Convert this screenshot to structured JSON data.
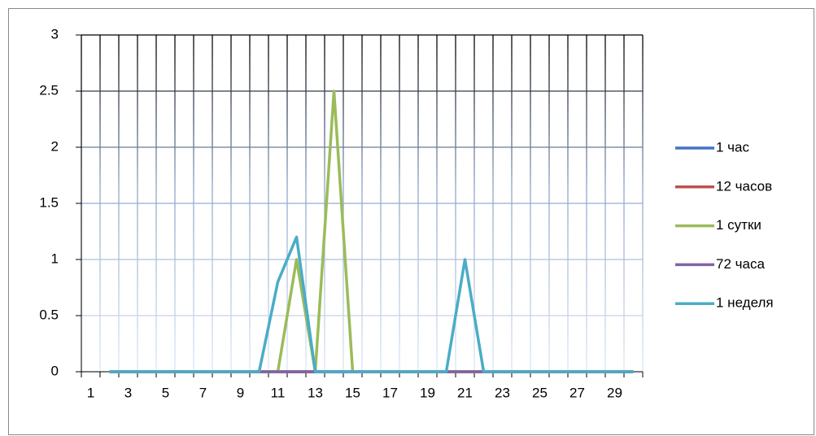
{
  "chart_data": {
    "type": "line",
    "categories": [
      1,
      null,
      3,
      null,
      5,
      null,
      7,
      null,
      9,
      null,
      11,
      null,
      13,
      null,
      15,
      null,
      17,
      null,
      19,
      null,
      21,
      null,
      23,
      null,
      25,
      null,
      27,
      null,
      29,
      null
    ],
    "series": [
      {
        "name": "1 час",
        "color": "#4472c4",
        "values": [
          null,
          0,
          0,
          0,
          0,
          0,
          0,
          0,
          0,
          0,
          0,
          0,
          0,
          0,
          0,
          0,
          0,
          0,
          0,
          0,
          0,
          0,
          0,
          0,
          0,
          0,
          0,
          0,
          0,
          0
        ]
      },
      {
        "name": "12 часов",
        "color": "#c0504d",
        "values": [
          null,
          0,
          0,
          0,
          0,
          0,
          0,
          0,
          0,
          0,
          0,
          0,
          0,
          0,
          0,
          0,
          0,
          0,
          0,
          0,
          0,
          0,
          0,
          0,
          0,
          0,
          0,
          0,
          0,
          0
        ]
      },
      {
        "name": "1 сутки",
        "color": "#9bbb59",
        "values": [
          null,
          0,
          0,
          0,
          0,
          0,
          0,
          0,
          0,
          0,
          0,
          1,
          0,
          2.5,
          0,
          0,
          0,
          0,
          0,
          0,
          0,
          0,
          0,
          0,
          0,
          0,
          0,
          0,
          0,
          0
        ]
      },
      {
        "name": "72 часа",
        "color": "#8064a2",
        "values": [
          null,
          0,
          0,
          0,
          0,
          0,
          0,
          0,
          0,
          0,
          0,
          0,
          0,
          0,
          0,
          0,
          0,
          0,
          0,
          0,
          0,
          0,
          0,
          0,
          0,
          0,
          0,
          0,
          0,
          0
        ]
      },
      {
        "name": "1 неделя",
        "color": "#4bacc6",
        "values": [
          null,
          0,
          0,
          0,
          0,
          0,
          0,
          0,
          0,
          0,
          0.8,
          1.2,
          0,
          0,
          0,
          0,
          0,
          0,
          0,
          0,
          1,
          0,
          0,
          0,
          0,
          0,
          0,
          0,
          0,
          0
        ]
      }
    ],
    "ylim": [
      0,
      3
    ],
    "yticks": [
      0,
      0.5,
      1,
      1.5,
      2,
      2.5,
      3
    ],
    "grid": true,
    "legend": "right"
  }
}
